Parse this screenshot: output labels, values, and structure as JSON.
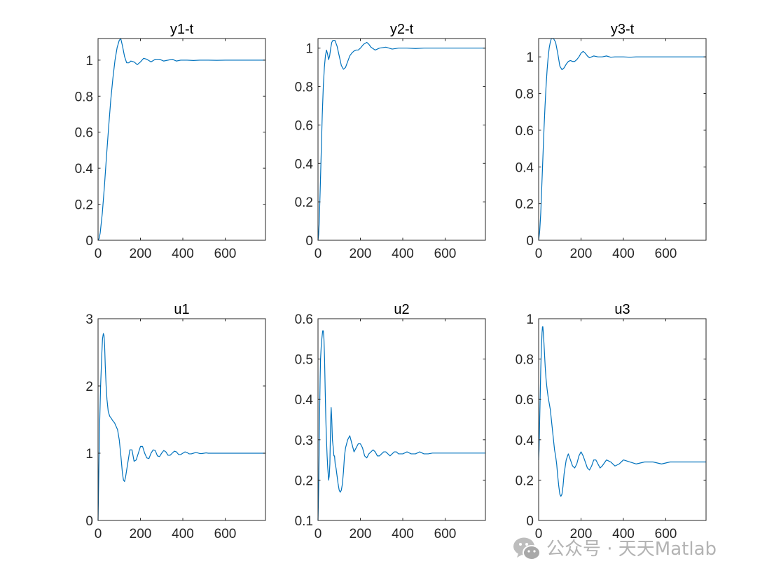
{
  "watermark": {
    "text": "公众号 · 天天Matlab",
    "icon": "wechat-icon"
  },
  "colors": {
    "line": "#0072BD",
    "axes": "#262626",
    "background": "#ffffff",
    "watermark": "#b3b3b3"
  },
  "chart_data": [
    {
      "type": "line",
      "title": "y1-t",
      "xlim": [
        0,
        790
      ],
      "ylim": [
        0,
        1.12
      ],
      "xticks": [
        0,
        200,
        400,
        600
      ],
      "yticks": [
        0,
        0.2,
        0.4,
        0.6,
        0.8,
        1
      ],
      "xticklabels": [
        "0",
        "200",
        "400",
        "600"
      ],
      "yticklabels": [
        "0",
        "0.2",
        "0.4",
        "0.6",
        "0.8",
        "1"
      ],
      "grid": false,
      "series": [
        {
          "x": [
            0,
            5,
            10,
            20,
            30,
            40,
            50,
            60,
            70,
            80,
            90,
            100,
            107,
            115,
            125,
            135,
            145,
            155,
            170,
            185,
            200,
            215,
            230,
            250,
            270,
            290,
            310,
            330,
            350,
            370,
            390,
            420,
            450,
            480,
            520,
            560,
            600,
            650,
            700,
            790
          ],
          "y": [
            0,
            0.01,
            0.04,
            0.15,
            0.3,
            0.47,
            0.63,
            0.78,
            0.9,
            1.0,
            1.07,
            1.11,
            1.12,
            1.08,
            1.02,
            0.985,
            0.985,
            0.995,
            0.99,
            0.975,
            0.99,
            1.01,
            1.005,
            0.99,
            1.005,
            1.005,
            0.995,
            1.0,
            1.005,
            0.995,
            1.0,
            1.0,
            0.998,
            1.0,
            1.0,
            0.999,
            1.0,
            1.0,
            1.0,
            1.0
          ]
        }
      ]
    },
    {
      "type": "line",
      "title": "y2-t",
      "xlim": [
        0,
        790
      ],
      "ylim": [
        0,
        1.05
      ],
      "xticks": [
        0,
        200,
        400,
        600
      ],
      "yticks": [
        0,
        0.2,
        0.4,
        0.6,
        0.8,
        1
      ],
      "xticklabels": [
        "0",
        "200",
        "400",
        "600"
      ],
      "yticklabels": [
        "0",
        "0.2",
        "0.4",
        "0.6",
        "0.8",
        "1"
      ],
      "grid": false,
      "series": [
        {
          "x": [
            0,
            3,
            6,
            10,
            15,
            20,
            25,
            30,
            35,
            40,
            45,
            50,
            55,
            60,
            65,
            70,
            80,
            90,
            100,
            110,
            120,
            130,
            140,
            150,
            160,
            170,
            180,
            190,
            200,
            215,
            230,
            240,
            250,
            270,
            290,
            320,
            350,
            380,
            420,
            460,
            500,
            550,
            600,
            650,
            700,
            790
          ],
          "y": [
            0,
            0.03,
            0.1,
            0.25,
            0.45,
            0.65,
            0.8,
            0.9,
            0.96,
            0.99,
            0.97,
            0.94,
            0.96,
            1.0,
            1.03,
            1.04,
            1.04,
            1.01,
            0.96,
            0.91,
            0.89,
            0.9,
            0.93,
            0.96,
            0.975,
            0.985,
            0.99,
            0.99,
            1.0,
            1.02,
            1.03,
            1.02,
            1.005,
            0.99,
            1.0,
            1.005,
            0.995,
            1.0,
            1.0,
            0.998,
            1.0,
            1.0,
            1.0,
            1.0,
            1.0,
            1.0
          ]
        }
      ]
    },
    {
      "type": "line",
      "title": "y3-t",
      "xlim": [
        0,
        790
      ],
      "ylim": [
        0,
        1.1
      ],
      "xticks": [
        0,
        200,
        400,
        600
      ],
      "yticks": [
        0,
        0.2,
        0.4,
        0.6,
        0.8,
        1
      ],
      "xticklabels": [
        "0",
        "200",
        "400",
        "600"
      ],
      "yticklabels": [
        "0",
        "0.2",
        "0.4",
        "0.6",
        "0.8",
        "1"
      ],
      "grid": false,
      "series": [
        {
          "x": [
            0,
            5,
            10,
            15,
            20,
            25,
            30,
            35,
            40,
            45,
            50,
            55,
            60,
            70,
            80,
            90,
            100,
            110,
            120,
            130,
            140,
            150,
            160,
            170,
            180,
            190,
            200,
            210,
            220,
            230,
            240,
            250,
            260,
            280,
            300,
            320,
            340,
            360,
            380,
            400,
            430,
            460,
            500,
            550,
            600,
            650,
            700,
            790
          ],
          "y": [
            0,
            0.05,
            0.15,
            0.3,
            0.45,
            0.6,
            0.73,
            0.84,
            0.93,
            1.0,
            1.05,
            1.08,
            1.1,
            1.1,
            1.08,
            1.02,
            0.95,
            0.93,
            0.94,
            0.96,
            0.975,
            0.98,
            0.975,
            0.975,
            0.985,
            1.0,
            1.02,
            1.03,
            1.02,
            1.005,
            0.995,
            1.0,
            1.005,
            1.0,
            1.0,
            1.005,
            0.998,
            1.0,
            1.0,
            1.0,
            0.998,
            1.0,
            1.0,
            1.0,
            1.0,
            1.0,
            1.0,
            1.0
          ]
        }
      ]
    },
    {
      "type": "line",
      "title": "u1",
      "xlim": [
        0,
        790
      ],
      "ylim": [
        0,
        3
      ],
      "xticks": [
        0,
        200,
        400,
        600
      ],
      "yticks": [
        0,
        1,
        2,
        3
      ],
      "xticklabels": [
        "0",
        "200",
        "400",
        "600"
      ],
      "yticklabels": [
        "0",
        "1",
        "2",
        "3"
      ],
      "grid": false,
      "series": [
        {
          "x": [
            0,
            2,
            4,
            6,
            8,
            10,
            12,
            15,
            18,
            21,
            25,
            28,
            31,
            34,
            38,
            42,
            48,
            55,
            62,
            70,
            78,
            85,
            92,
            100,
            108,
            115,
            120,
            125,
            130,
            135,
            140,
            150,
            160,
            170,
            180,
            190,
            200,
            210,
            220,
            230,
            240,
            250,
            260,
            270,
            280,
            290,
            300,
            310,
            320,
            330,
            340,
            350,
            360,
            370,
            380,
            390,
            400,
            410,
            420,
            430,
            440,
            450,
            460,
            470,
            480,
            490,
            500,
            510,
            520,
            530,
            540,
            560,
            580,
            600,
            620,
            650,
            700,
            790
          ],
          "y": [
            0,
            0.4,
            0.8,
            1.2,
            1.5,
            1.75,
            2.0,
            2.25,
            2.5,
            2.7,
            2.78,
            2.75,
            2.6,
            2.3,
            2.0,
            1.8,
            1.62,
            1.55,
            1.52,
            1.48,
            1.45,
            1.4,
            1.35,
            1.2,
            0.95,
            0.7,
            0.6,
            0.58,
            0.65,
            0.75,
            0.85,
            1.05,
            1.05,
            0.88,
            0.9,
            1.0,
            1.1,
            1.1,
            1.0,
            0.93,
            0.92,
            1.0,
            1.05,
            1.04,
            0.96,
            0.95,
            1.0,
            1.04,
            1.02,
            0.97,
            0.97,
            1.0,
            1.03,
            1.02,
            0.98,
            0.98,
            1.0,
            1.02,
            1.01,
            0.99,
            0.99,
            1.0,
            1.01,
            1.005,
            0.995,
            0.995,
            1.0,
            1.005,
            1.0,
            1.0,
            1.0,
            1.0,
            1.0,
            1.0,
            1.0,
            1.0,
            1.0,
            1.0
          ]
        }
      ]
    },
    {
      "type": "line",
      "title": "u2",
      "xlim": [
        0,
        790
      ],
      "ylim": [
        0.1,
        0.6
      ],
      "xticks": [
        0,
        200,
        400,
        600
      ],
      "yticks": [
        0.1,
        0.2,
        0.3,
        0.4,
        0.5,
        0.6
      ],
      "xticklabels": [
        "0",
        "200",
        "400",
        "600"
      ],
      "yticklabels": [
        "0.1",
        "0.2",
        "0.3",
        "0.4",
        "0.5",
        "0.6"
      ],
      "grid": false,
      "series": [
        {
          "x": [
            0,
            2,
            4,
            6,
            8,
            10,
            12,
            15,
            18,
            20,
            22,
            25,
            28,
            31,
            34,
            37,
            40,
            43,
            46,
            50,
            53,
            56,
            58,
            60,
            62,
            65,
            68,
            70,
            72,
            75,
            78,
            81,
            85,
            90,
            95,
            100,
            105,
            110,
            115,
            120,
            125,
            130,
            140,
            150,
            160,
            170,
            180,
            190,
            200,
            210,
            220,
            230,
            240,
            250,
            260,
            270,
            280,
            290,
            300,
            310,
            320,
            330,
            340,
            350,
            360,
            370,
            380,
            400,
            420,
            440,
            460,
            480,
            500,
            520,
            540,
            560,
            600,
            650,
            700,
            790
          ],
          "y": [
            0.1,
            0.15,
            0.2,
            0.3,
            0.38,
            0.45,
            0.5,
            0.53,
            0.55,
            0.56,
            0.57,
            0.57,
            0.55,
            0.5,
            0.42,
            0.35,
            0.3,
            0.26,
            0.23,
            0.2,
            0.21,
            0.24,
            0.3,
            0.35,
            0.38,
            0.35,
            0.3,
            0.29,
            0.28,
            0.26,
            0.26,
            0.24,
            0.23,
            0.21,
            0.19,
            0.175,
            0.17,
            0.175,
            0.19,
            0.22,
            0.26,
            0.28,
            0.3,
            0.31,
            0.29,
            0.27,
            0.28,
            0.29,
            0.29,
            0.28,
            0.26,
            0.255,
            0.265,
            0.27,
            0.275,
            0.27,
            0.26,
            0.26,
            0.265,
            0.27,
            0.27,
            0.265,
            0.26,
            0.265,
            0.27,
            0.27,
            0.265,
            0.265,
            0.27,
            0.265,
            0.265,
            0.27,
            0.265,
            0.265,
            0.267,
            0.267,
            0.267,
            0.267,
            0.267,
            0.267
          ]
        }
      ]
    },
    {
      "type": "line",
      "title": "u3",
      "xlim": [
        0,
        790
      ],
      "ylim": [
        0,
        1
      ],
      "xticks": [
        0,
        200,
        400,
        600
      ],
      "yticks": [
        0,
        0.2,
        0.4,
        0.6,
        0.8,
        1
      ],
      "xticklabels": [
        "0",
        "200",
        "400",
        "600"
      ],
      "yticklabels": [
        "0",
        "0.2",
        "0.4",
        "0.6",
        "0.8",
        "1"
      ],
      "grid": false,
      "series": [
        {
          "x": [
            0,
            2,
            4,
            6,
            8,
            10,
            12,
            14,
            16,
            18,
            20,
            22,
            25,
            28,
            31,
            35,
            40,
            45,
            50,
            55,
            60,
            65,
            70,
            75,
            80,
            85,
            90,
            95,
            100,
            105,
            110,
            115,
            120,
            130,
            140,
            150,
            160,
            170,
            180,
            190,
            200,
            210,
            220,
            230,
            240,
            250,
            260,
            270,
            280,
            290,
            300,
            320,
            340,
            360,
            380,
            400,
            430,
            460,
            500,
            540,
            580,
            620,
            660,
            700,
            790
          ],
          "y": [
            0.3,
            0.35,
            0.45,
            0.55,
            0.65,
            0.75,
            0.82,
            0.88,
            0.93,
            0.96,
            0.96,
            0.93,
            0.88,
            0.82,
            0.76,
            0.7,
            0.65,
            0.61,
            0.58,
            0.55,
            0.5,
            0.45,
            0.4,
            0.35,
            0.32,
            0.28,
            0.22,
            0.17,
            0.13,
            0.12,
            0.13,
            0.17,
            0.23,
            0.3,
            0.33,
            0.3,
            0.27,
            0.26,
            0.28,
            0.32,
            0.34,
            0.32,
            0.29,
            0.26,
            0.25,
            0.27,
            0.3,
            0.3,
            0.28,
            0.26,
            0.27,
            0.3,
            0.29,
            0.27,
            0.28,
            0.3,
            0.29,
            0.28,
            0.29,
            0.29,
            0.28,
            0.29,
            0.29,
            0.29,
            0.29
          ]
        }
      ]
    }
  ]
}
